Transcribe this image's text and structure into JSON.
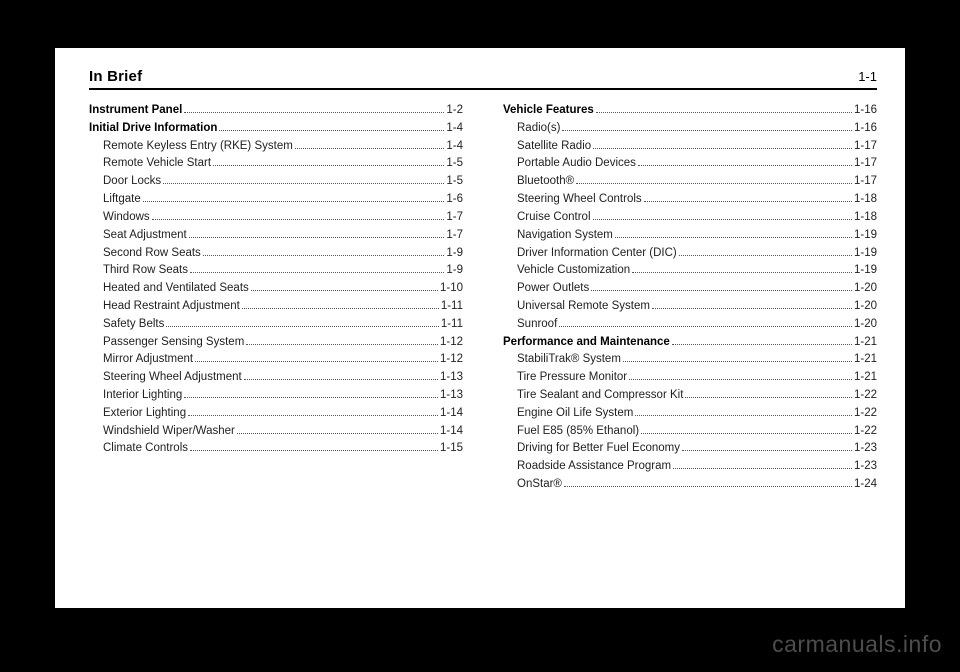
{
  "header": {
    "title": "In Brief",
    "page": "1-1"
  },
  "watermark": "carmanuals.info",
  "columns": [
    [
      {
        "level": 0,
        "label": "Instrument Panel",
        "page": "1-2"
      },
      {
        "level": 0,
        "label": "Initial Drive Information",
        "page": "1-4"
      },
      {
        "level": 1,
        "label": "Remote Keyless Entry (RKE) System",
        "page": "1-4"
      },
      {
        "level": 1,
        "label": "Remote Vehicle Start",
        "page": "1-5"
      },
      {
        "level": 1,
        "label": "Door Locks",
        "page": "1-5"
      },
      {
        "level": 1,
        "label": "Liftgate",
        "page": "1-6"
      },
      {
        "level": 1,
        "label": "Windows",
        "page": "1-7"
      },
      {
        "level": 1,
        "label": "Seat Adjustment",
        "page": "1-7"
      },
      {
        "level": 1,
        "label": "Second Row Seats",
        "page": "1-9"
      },
      {
        "level": 1,
        "label": "Third Row Seats",
        "page": "1-9"
      },
      {
        "level": 1,
        "label": "Heated and Ventilated Seats",
        "page": "1-10"
      },
      {
        "level": 1,
        "label": "Head Restraint Adjustment",
        "page": "1-11"
      },
      {
        "level": 1,
        "label": "Safety Belts",
        "page": "1-11"
      },
      {
        "level": 1,
        "label": "Passenger Sensing System",
        "page": "1-12"
      },
      {
        "level": 1,
        "label": "Mirror Adjustment",
        "page": "1-12"
      },
      {
        "level": 1,
        "label": "Steering Wheel Adjustment",
        "page": "1-13"
      },
      {
        "level": 1,
        "label": "Interior Lighting",
        "page": "1-13"
      },
      {
        "level": 1,
        "label": "Exterior Lighting",
        "page": "1-14"
      },
      {
        "level": 1,
        "label": "Windshield Wiper/Washer",
        "page": "1-14"
      },
      {
        "level": 1,
        "label": "Climate Controls",
        "page": "1-15"
      }
    ],
    [
      {
        "level": 0,
        "label": "Vehicle Features",
        "page": "1-16"
      },
      {
        "level": 1,
        "label": "Radio(s)",
        "page": "1-16"
      },
      {
        "level": 1,
        "label": "Satellite Radio",
        "page": "1-17"
      },
      {
        "level": 1,
        "label": "Portable Audio Devices",
        "page": "1-17"
      },
      {
        "level": 1,
        "label": "Bluetooth®",
        "page": "1-17"
      },
      {
        "level": 1,
        "label": "Steering Wheel Controls",
        "page": "1-18"
      },
      {
        "level": 1,
        "label": "Cruise Control",
        "page": "1-18"
      },
      {
        "level": 1,
        "label": "Navigation System",
        "page": "1-19"
      },
      {
        "level": 1,
        "label": "Driver Information Center (DIC)",
        "page": "1-19"
      },
      {
        "level": 1,
        "label": "Vehicle Customization",
        "page": "1-19"
      },
      {
        "level": 1,
        "label": "Power Outlets",
        "page": "1-20"
      },
      {
        "level": 1,
        "label": "Universal Remote System",
        "page": "1-20"
      },
      {
        "level": 1,
        "label": "Sunroof",
        "page": "1-20"
      },
      {
        "level": 0,
        "label": "Performance and Maintenance",
        "page": "1-21"
      },
      {
        "level": 1,
        "label": "StabiliTrak® System",
        "page": "1-21"
      },
      {
        "level": 1,
        "label": "Tire Pressure Monitor",
        "page": "1-21"
      },
      {
        "level": 1,
        "label": "Tire Sealant and Compressor Kit",
        "page": "1-22"
      },
      {
        "level": 1,
        "label": "Engine Oil Life System",
        "page": "1-22"
      },
      {
        "level": 1,
        "label": "Fuel E85 (85% Ethanol)",
        "page": "1-22"
      },
      {
        "level": 1,
        "label": "Driving for Better Fuel Economy",
        "page": "1-23"
      },
      {
        "level": 1,
        "label": "Roadside Assistance Program",
        "page": "1-23"
      },
      {
        "level": 1,
        "label": "OnStar®",
        "page": "1-24"
      }
    ]
  ]
}
